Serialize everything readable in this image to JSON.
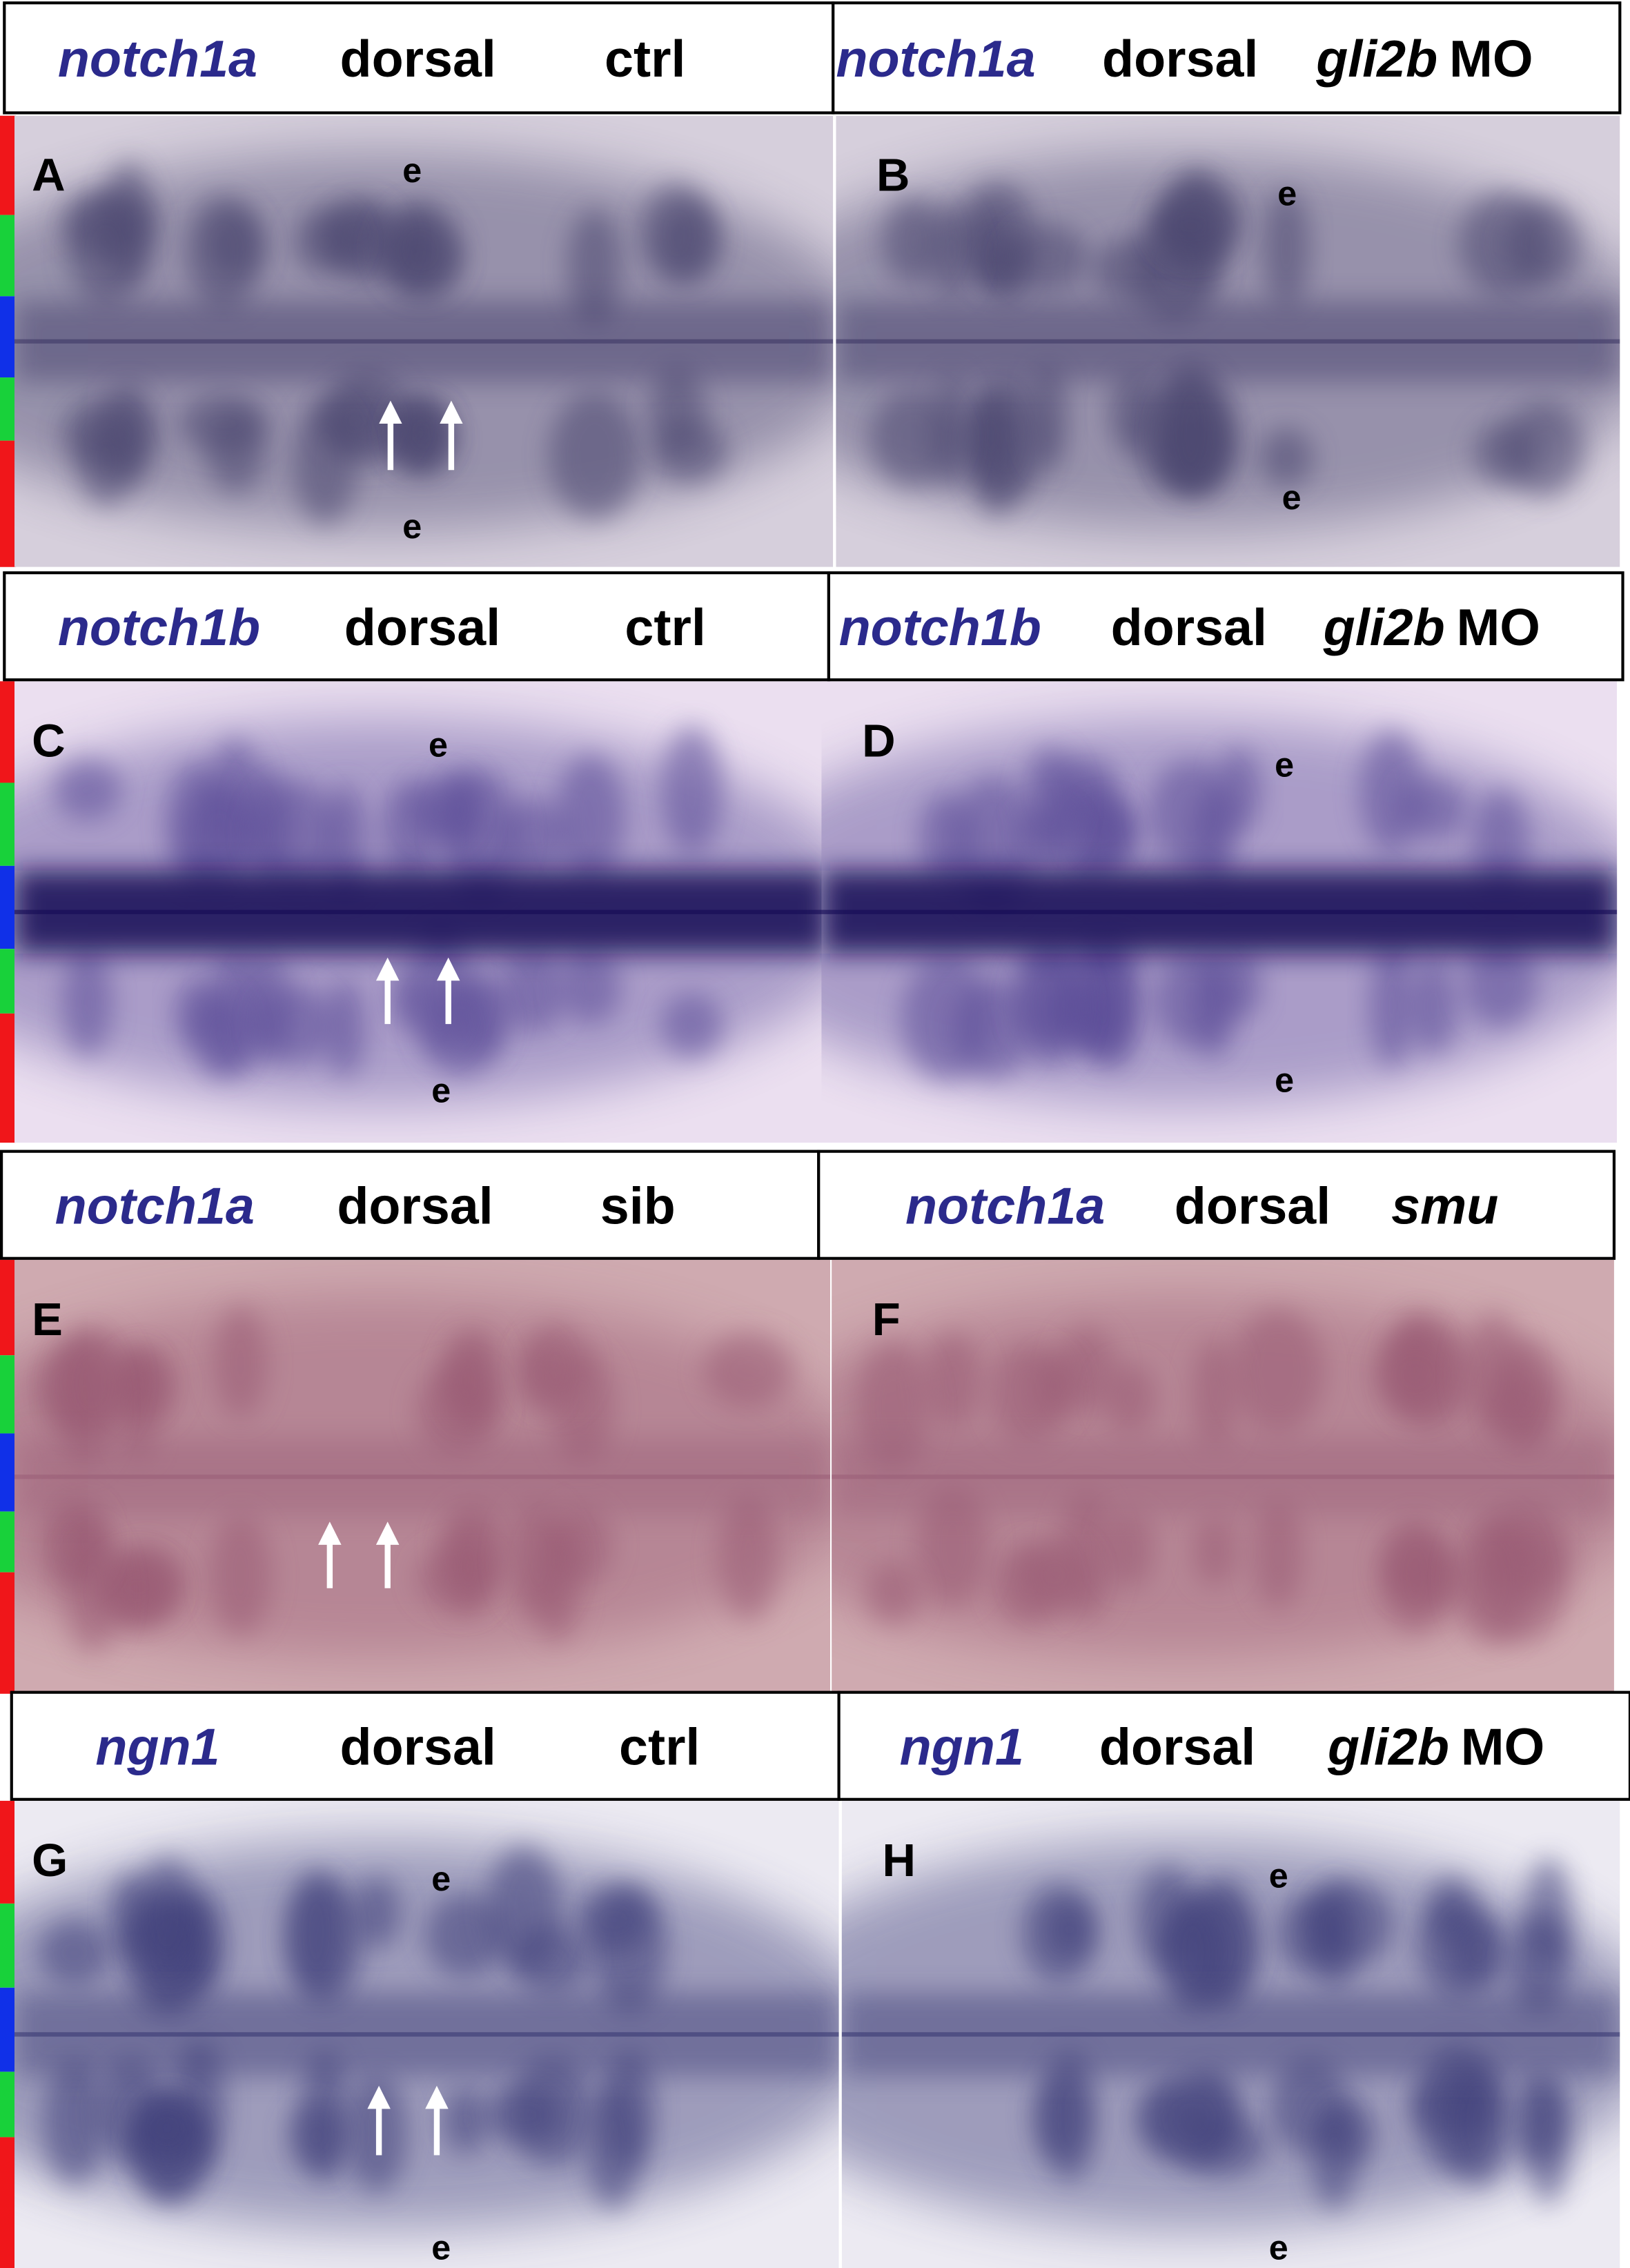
{
  "panels": [
    {
      "letter": "A",
      "gene": "notch1a",
      "view": "dorsal",
      "condition": "ctrl",
      "labels": [
        "e",
        "e"
      ]
    },
    {
      "letter": "B",
      "gene": "notch1a",
      "view": "dorsal",
      "condition_italic": "gli2b",
      "condition": "MO",
      "labels": [
        "e",
        "e"
      ]
    },
    {
      "letter": "C",
      "gene": "notch1b",
      "view": "dorsal",
      "condition": "ctrl",
      "labels": [
        "e",
        "e"
      ]
    },
    {
      "letter": "D",
      "gene": "notch1b",
      "view": "dorsal",
      "condition_italic": "gli2b",
      "condition": "MO",
      "labels": [
        "e",
        "e"
      ]
    },
    {
      "letter": "E",
      "gene": "notch1a",
      "view": "dorsal",
      "condition": "sib"
    },
    {
      "letter": "F",
      "gene": "notch1a",
      "view": "dorsal",
      "condition_italic": "smu"
    },
    {
      "letter": "G",
      "gene": "ngn1",
      "view": "dorsal",
      "condition": "ctrl",
      "labels": [
        "e",
        "e"
      ]
    },
    {
      "letter": "H",
      "gene": "ngn1",
      "view": "dorsal",
      "condition_italic": "gli2b",
      "condition": "MO",
      "labels": [
        "e",
        "e"
      ]
    }
  ]
}
